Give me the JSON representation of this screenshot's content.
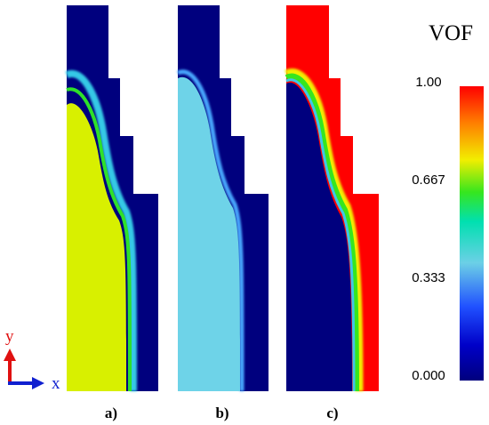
{
  "panels": [
    {
      "label": "a)",
      "liquid_color": "#d8f000"
    },
    {
      "label": "b)",
      "liquid_color": "#6ed3e8"
    },
    {
      "label": "c)",
      "liquid_color": "#00007e"
    }
  ],
  "axes": {
    "y_label": "y",
    "x_label": "x",
    "y_color": "#e01010",
    "x_color": "#1020d0"
  },
  "colorbar": {
    "title": "VOF",
    "ticks": [
      "1.00",
      "0.667",
      "0.333",
      "0.000"
    ],
    "colormap": [
      "#ff0000",
      "#ff7a00",
      "#f2ee00",
      "#36e61e",
      "#00e0b0",
      "#6cd0e6",
      "#2050ff",
      "#0000c8",
      "#00007e"
    ]
  },
  "colors": {
    "dark_blue": "#00007e",
    "red": "#ff0000",
    "cyan": "#6ed3e8",
    "yellow": "#d8f000"
  }
}
